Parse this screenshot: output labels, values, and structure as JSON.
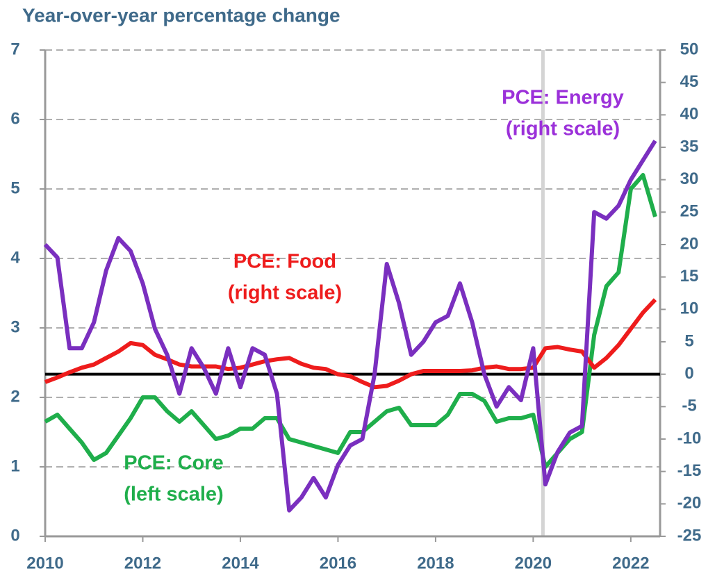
{
  "chart_data": {
    "type": "line",
    "title": "Year-over-year percentage change",
    "x": [
      2010.0,
      2010.25,
      2010.5,
      2010.75,
      2011.0,
      2011.25,
      2011.5,
      2011.75,
      2012.0,
      2012.25,
      2012.5,
      2012.75,
      2013.0,
      2013.25,
      2013.5,
      2013.75,
      2014.0,
      2014.25,
      2014.5,
      2014.75,
      2015.0,
      2015.25,
      2015.5,
      2015.75,
      2016.0,
      2016.25,
      2016.5,
      2016.75,
      2017.0,
      2017.25,
      2017.5,
      2017.75,
      2018.0,
      2018.25,
      2018.5,
      2018.75,
      2019.0,
      2019.25,
      2019.5,
      2019.75,
      2020.0,
      2020.25,
      2020.5,
      2020.75,
      2021.0,
      2021.25,
      2021.5,
      2021.75,
      2022.0,
      2022.25,
      2022.5
    ],
    "xlim": [
      2010,
      2022.6
    ],
    "xticks": [
      2010,
      2012,
      2014,
      2016,
      2018,
      2020,
      2022
    ],
    "ylim": [
      0,
      7
    ],
    "yticks": [
      0,
      1,
      2,
      3,
      4,
      5,
      6,
      7
    ],
    "y2lim": [
      -25,
      50
    ],
    "y2ticks": [
      -25,
      -20,
      -15,
      -10,
      -5,
      0,
      5,
      10,
      15,
      20,
      25,
      30,
      35,
      40,
      45,
      50
    ],
    "grid": true,
    "reference_lines": [
      {
        "x": 2020.2,
        "color": "#d4d4d4"
      }
    ],
    "series": [
      {
        "name": "PCE: Core",
        "color": "#1fae4b",
        "axis": "y",
        "values": [
          1.65,
          1.75,
          1.55,
          1.35,
          1.1,
          1.2,
          1.45,
          1.7,
          2.0,
          2.0,
          1.8,
          1.65,
          1.8,
          1.6,
          1.4,
          1.45,
          1.55,
          1.55,
          1.7,
          1.7,
          1.4,
          1.35,
          1.3,
          1.25,
          1.2,
          1.5,
          1.5,
          1.65,
          1.8,
          1.85,
          1.6,
          1.6,
          1.6,
          1.75,
          2.05,
          2.05,
          1.95,
          1.65,
          1.7,
          1.7,
          1.75,
          1.0,
          1.2,
          1.4,
          1.5,
          2.9,
          3.6,
          3.8,
          5.0,
          5.2,
          4.6
        ]
      },
      {
        "name": "PCE: Food",
        "color": "#ee1c1c",
        "axis": "y2",
        "values": [
          -1.2,
          -0.5,
          0.3,
          1,
          1.5,
          2.5,
          3.5,
          4.8,
          4.5,
          3,
          2.3,
          1.5,
          1.2,
          1.2,
          1.2,
          0.8,
          1,
          1.5,
          2,
          2.3,
          2.5,
          1.6,
          1,
          0.8,
          0,
          -0.3,
          -1.2,
          -2,
          -1.8,
          -1,
          0,
          0.5,
          0.5,
          0.5,
          0.5,
          0.6,
          1,
          1.2,
          0.8,
          0.8,
          1,
          4,
          4.2,
          3.8,
          3.5,
          1,
          2.5,
          4.5,
          7,
          9.5,
          11.5
        ]
      },
      {
        "name": "PCE: Energy",
        "color": "#7a2fbf",
        "axis": "y2",
        "values": [
          20,
          18,
          4,
          4,
          8,
          16,
          21,
          19,
          14,
          7,
          3,
          -3,
          4,
          1,
          -3,
          4,
          -2,
          4,
          3,
          -3,
          -21,
          -19,
          -16,
          -19,
          -14,
          -11,
          -10,
          0,
          17,
          11,
          3,
          5,
          8,
          9,
          14,
          8,
          0,
          -5,
          -2,
          -4,
          4,
          -17,
          -12,
          -9,
          -8,
          25,
          24,
          26,
          30,
          33,
          36
        ]
      }
    ],
    "annotations": [
      {
        "lines": [
          "PCE: Energy",
          "(right scale)"
        ],
        "color": "#9b30d9"
      },
      {
        "lines": [
          "PCE: Food",
          "(right scale)"
        ],
        "color": "#ee1c1c"
      },
      {
        "lines": [
          "PCE: Core",
          "(left scale)"
        ],
        "color": "#1fae4b"
      }
    ]
  }
}
